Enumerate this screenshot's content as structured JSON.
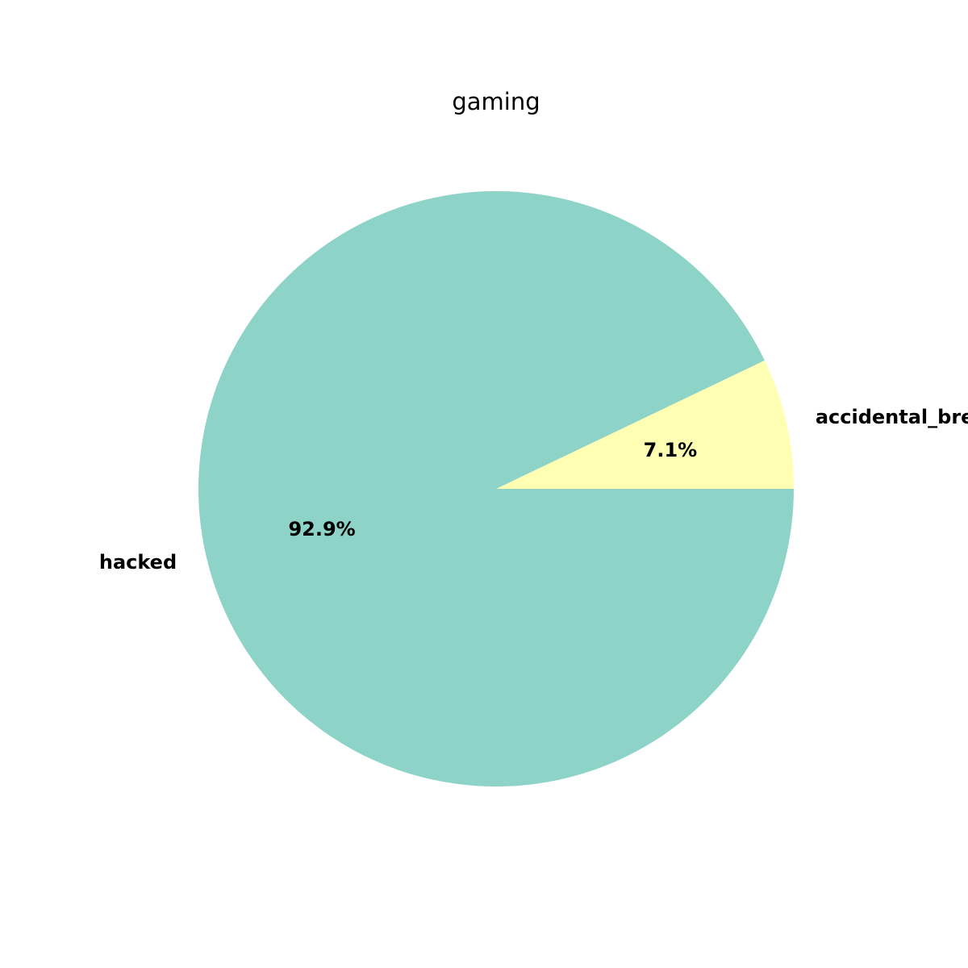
{
  "chart_data": {
    "type": "pie",
    "title": "gaming",
    "start_angle_deg": 0,
    "direction": "counterclockwise-from-east",
    "slices": [
      {
        "label": "accidental_breach",
        "value": 7.1,
        "pct_label": "7.1%",
        "color": "#ffffb3"
      },
      {
        "label": "hacked",
        "value": 92.9,
        "pct_label": "92.9%",
        "color": "#8dd3c7"
      }
    ]
  }
}
